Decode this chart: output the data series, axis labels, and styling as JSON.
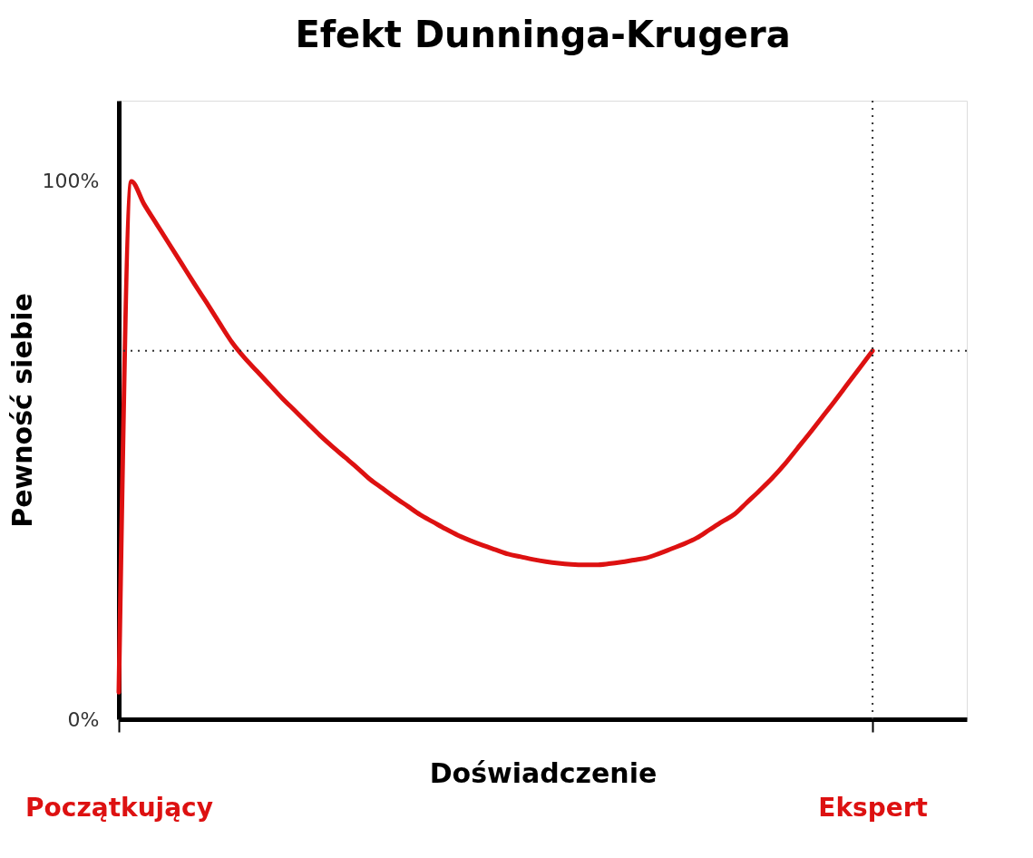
{
  "chart_data": {
    "type": "line",
    "title": "Efekt Dunninga-Krugera",
    "xlabel": "Doświadczenie",
    "ylabel": "Pewność siebie",
    "categories": [
      "Początkujący",
      null,
      null,
      null,
      null,
      null,
      null,
      null,
      null,
      null,
      null,
      null,
      null,
      null,
      null,
      null,
      null,
      null,
      null,
      null,
      null,
      null,
      null,
      null,
      null,
      null,
      null,
      null,
      null,
      null,
      null,
      null,
      null,
      null,
      null,
      null,
      null,
      null,
      null,
      null,
      null,
      null,
      null,
      null,
      null,
      null,
      null,
      null,
      null,
      null,
      null,
      null,
      null,
      null,
      null,
      null,
      null,
      null,
      null,
      null,
      "Ekspert"
    ],
    "series": [
      {
        "color": "#dd1111",
        "values": [
          5,
          100,
          95.8,
          92.1,
          88.4,
          84.7,
          81.0,
          77.4,
          73.7,
          70.1,
          67.2,
          64.7,
          62.2,
          59.7,
          57.4,
          55.1,
          52.8,
          50.7,
          48.7,
          46.7,
          44.6,
          42.9,
          41.2,
          39.6,
          38.0,
          36.7,
          35.4,
          34.2,
          33.2,
          32.3,
          31.5,
          30.7,
          30.2,
          29.7,
          29.3,
          29.0,
          28.8,
          28.7,
          28.7,
          28.9,
          29.2,
          29.6,
          30.0,
          30.8,
          31.7,
          32.6,
          33.7,
          35.2,
          36.7,
          38.1,
          40.3,
          42.5,
          44.8,
          47.4,
          50.3,
          53.2,
          56.2,
          59.2,
          62.3,
          65.4,
          68.5
        ]
      }
    ],
    "ylim": [
      0,
      115
    ],
    "yticks": [
      {
        "value": 0,
        "label": "0%"
      },
      {
        "value": 100,
        "label": "100%"
      }
    ],
    "ref_lines": [
      {
        "axis": "y",
        "value": 68.5,
        "color": "#333333",
        "line_style": "dotted"
      },
      {
        "axis": "x",
        "value": "Ekspert",
        "color": "#333333",
        "line_style": "dotted"
      }
    ],
    "grid": false,
    "marker": "none",
    "line_style": "solid"
  }
}
